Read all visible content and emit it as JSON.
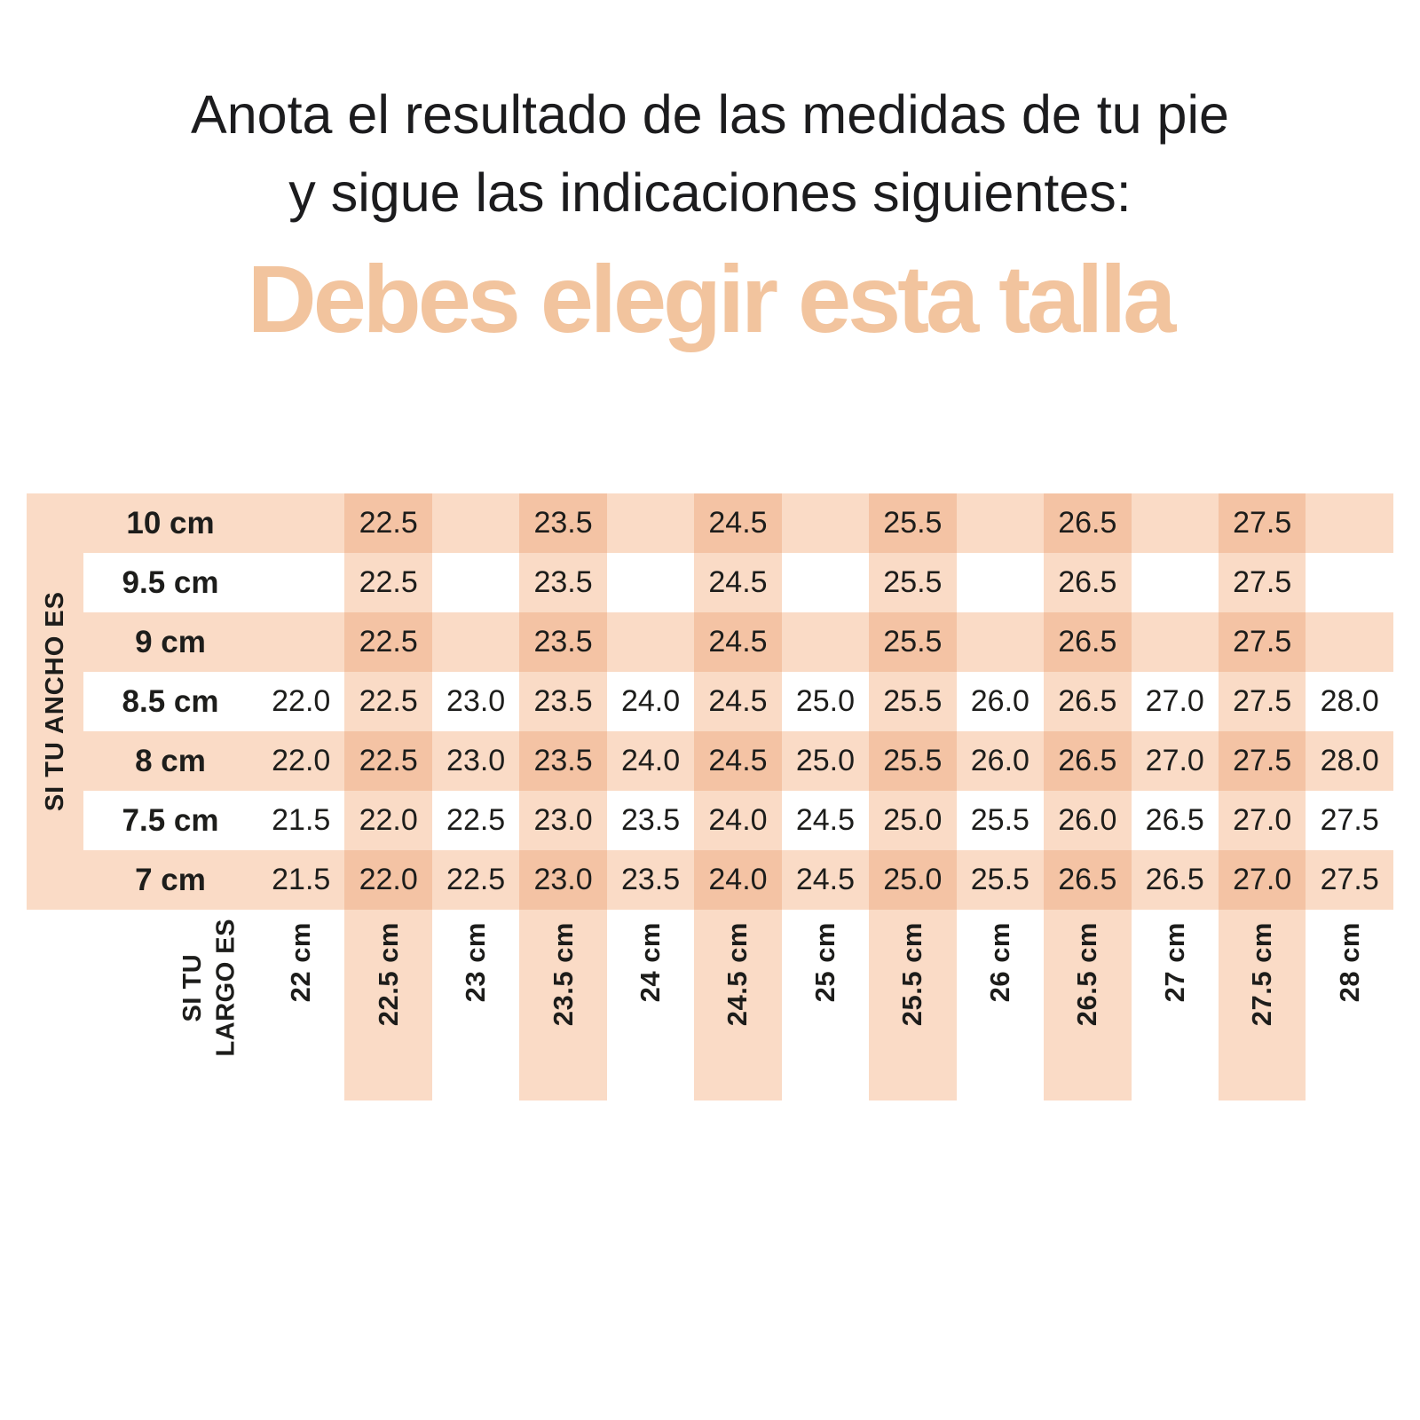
{
  "header": {
    "instruction_line1": "Anota el resultado de las medidas de tu pie",
    "instruction_line2": "y sigue las indicaciones siguientes:",
    "headline": "Debes elegir esta talla"
  },
  "chart_data": {
    "type": "table",
    "title": "Debes elegir esta talla",
    "row_axis_label": "SI TU ANCHO ES",
    "column_axis_label": "SI TU LARGO ES",
    "column_axis_label_display": "SI TU\nLARGO ES",
    "row_labels_foot_width": [
      "10 cm",
      "9.5 cm",
      "9 cm",
      "8.5 cm",
      "8 cm",
      "7.5 cm",
      "7 cm"
    ],
    "column_labels_foot_length": [
      "22 cm",
      "22.5 cm",
      "23 cm",
      "23.5 cm",
      "24 cm",
      "24.5 cm",
      "25 cm",
      "25.5 cm",
      "26 cm",
      "26.5 cm",
      "27 cm",
      "27.5 cm",
      "28 cm"
    ],
    "recommended_sizes": [
      [
        "",
        "22.5",
        "",
        "23.5",
        "",
        "24.5",
        "",
        "25.5",
        "",
        "26.5",
        "",
        "27.5",
        ""
      ],
      [
        "",
        "22.5",
        "",
        "23.5",
        "",
        "24.5",
        "",
        "25.5",
        "",
        "26.5",
        "",
        "27.5",
        ""
      ],
      [
        "",
        "22.5",
        "",
        "23.5",
        "",
        "24.5",
        "",
        "25.5",
        "",
        "26.5",
        "",
        "27.5",
        ""
      ],
      [
        "22.0",
        "22.5",
        "23.0",
        "23.5",
        "24.0",
        "24.5",
        "25.0",
        "25.5",
        "26.0",
        "26.5",
        "27.0",
        "27.5",
        "28.0"
      ],
      [
        "22.0",
        "22.5",
        "23.0",
        "23.5",
        "24.0",
        "24.5",
        "25.0",
        "25.5",
        "26.0",
        "26.5",
        "27.0",
        "27.5",
        "28.0"
      ],
      [
        "21.5",
        "22.0",
        "22.5",
        "23.0",
        "23.5",
        "24.0",
        "24.5",
        "25.0",
        "25.5",
        "26.0",
        "26.5",
        "27.0",
        "27.5"
      ],
      [
        "21.5",
        "22.0",
        "22.5",
        "23.0",
        "23.5",
        "24.0",
        "24.5",
        "25.0",
        "25.5",
        "26.5",
        "26.5",
        "27.0",
        "27.5"
      ]
    ],
    "layout_hints": {
      "striped_rows": "even rows (10 cm, 9 cm, 8 cm, 7 cm)",
      "striped_columns": "odd columns (22.5, 23.5, 24.5, 25.5, 26.5, 27.5)",
      "grid": "off"
    }
  },
  "colors": {
    "stripe_light": "#fadbc6",
    "stripe_overlap": "#f4c3a4",
    "headline": "#f2c49e",
    "text": "#1d1d1b"
  }
}
